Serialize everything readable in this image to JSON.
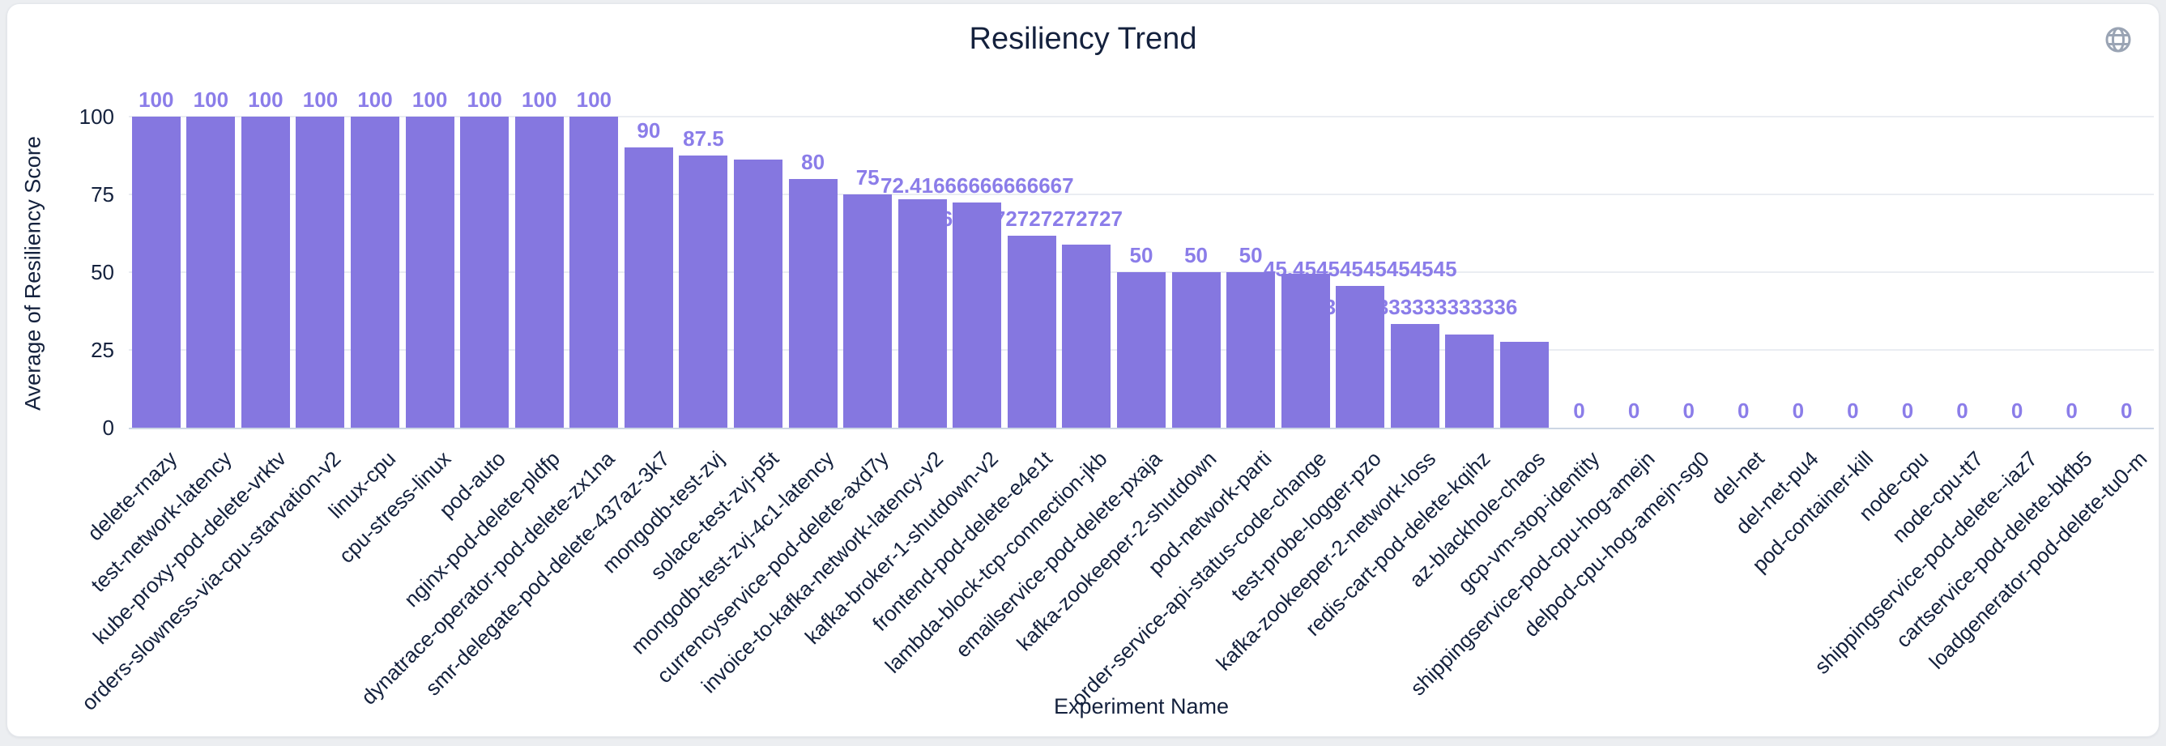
{
  "page": {
    "background": "#eceef1",
    "card_background": "#ffffff"
  },
  "header": {
    "title": "Resiliency Trend"
  },
  "toolbar": {
    "globe_icon": "globe-icon"
  },
  "colors": {
    "bar": "#8577e0",
    "value_label": "#8b7de9",
    "axis_text": "#14213d",
    "gridline": "#eaedf2",
    "baseline": "#ccd6e4",
    "icon_gray": "#9aa4b4"
  },
  "chart_data": {
    "type": "bar",
    "title": "Resiliency Trend",
    "xlabel": "Experiment Name",
    "ylabel": "Average of Resiliency Score",
    "ylim": [
      0,
      100
    ],
    "yticks": [
      0,
      25,
      50,
      75,
      100
    ],
    "grid": true,
    "legend": "none",
    "bar_color": "#8577e0",
    "points": [
      {
        "name": "delete-rnazy",
        "value": 100,
        "label": "100"
      },
      {
        "name": "test-network-latency",
        "value": 100,
        "label": "100"
      },
      {
        "name": "kube-proxy-pod-delete-vrktv",
        "value": 100,
        "label": "100"
      },
      {
        "name": "orders-slowness-via-cpu-starvation-v2",
        "value": 100,
        "label": "100"
      },
      {
        "name": "linux-cpu",
        "value": 100,
        "label": "100"
      },
      {
        "name": "cpu-stress-linux",
        "value": 100,
        "label": "100"
      },
      {
        "name": "pod-auto",
        "value": 100,
        "label": "100"
      },
      {
        "name": "nginx-pod-delete-pldfp",
        "value": 100,
        "label": "100"
      },
      {
        "name": "dynatrace-operator-pod-delete-zx1na",
        "value": 100,
        "label": "100"
      },
      {
        "name": "smr-delegate-pod-delete-437az-3k7",
        "value": 90,
        "label": "90"
      },
      {
        "name": "mongodb-test-zvj",
        "value": 87.5,
        "label": "87.5"
      },
      {
        "name": "solace-test-zvj-p5t",
        "value": 86.25,
        "label": ""
      },
      {
        "name": "mongodb-test-zvj-4c1-latency",
        "value": 80,
        "label": "80"
      },
      {
        "name": "currencyservice-pod-delete-axd7y",
        "value": 75,
        "label": "75"
      },
      {
        "name": "invoice-to-kafka-network-latency-v2",
        "value": 73.5,
        "label": ""
      },
      {
        "name": "kafka-broker-1-shutdown-v2",
        "value": 72.41666666666667,
        "label": "72.41666666666667"
      },
      {
        "name": "frontend-pod-delete-e4e1t",
        "value": 61.7272727272727,
        "label": "61.7272727272727"
      },
      {
        "name": "lambda-block-tcp-connection-jkb",
        "value": 58.75,
        "label": ""
      },
      {
        "name": "emailservice-pod-delete-pxaja",
        "value": 50,
        "label": "50"
      },
      {
        "name": "kafka-zookeeper-2-shutdown",
        "value": 50,
        "label": "50"
      },
      {
        "name": "pod-network-parti",
        "value": 50,
        "label": "50"
      },
      {
        "name": "order-service-api-status-code-change",
        "value": 49.5,
        "label": ""
      },
      {
        "name": "test-probe-logger-pzo",
        "value": 45.45454545454545,
        "label": "45.45454545454545"
      },
      {
        "name": "kafka-zookeeper-2-network-loss",
        "value": 33.333333333333336,
        "label": "33.333333333333336"
      },
      {
        "name": "redis-cart-pod-delete-kqihz",
        "value": 30,
        "label": ""
      },
      {
        "name": "az-blackhole-chaos",
        "value": 27.5,
        "label": ""
      },
      {
        "name": "gcp-vm-stop-identity",
        "value": 0,
        "label": "0"
      },
      {
        "name": "shippingservice-pod-cpu-hog-amejn",
        "value": 0,
        "label": "0"
      },
      {
        "name": "delpod-cpu-hog-amejn-sg0",
        "value": 0,
        "label": "0"
      },
      {
        "name": "del-net",
        "value": 0,
        "label": "0"
      },
      {
        "name": "del-net-pu4",
        "value": 0,
        "label": "0"
      },
      {
        "name": "pod-container-kill",
        "value": 0,
        "label": "0"
      },
      {
        "name": "node-cpu",
        "value": 0,
        "label": "0"
      },
      {
        "name": "node-cpu-tt7",
        "value": 0,
        "label": "0"
      },
      {
        "name": "shippingservice-pod-delete--iaz7",
        "value": 0,
        "label": "0"
      },
      {
        "name": "cartservice-pod-delete-bkfb5",
        "value": 0,
        "label": "0"
      },
      {
        "name": "loadgenerator-pod-delete-tu0-m",
        "value": 0,
        "label": "0"
      }
    ]
  }
}
